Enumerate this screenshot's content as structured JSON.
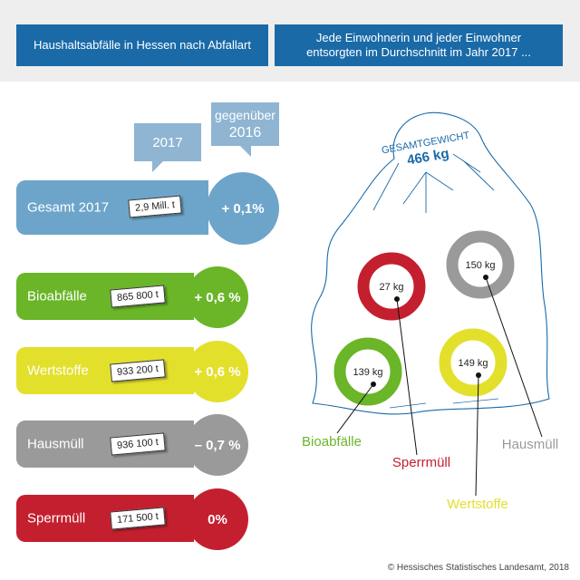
{
  "header": {
    "left": "Haushaltsabfälle in Hessen nach Abfallart",
    "right_line1": "Jede Einwohnerin und jeder Einwohner",
    "right_line2": "entsorgten im Durchschnitt im Jahr 2017 ..."
  },
  "bubbles": {
    "year": "2017",
    "vs_line1": "gegenüber",
    "vs_line2": "2016"
  },
  "rows": [
    {
      "label": "Gesamt 2017",
      "amount": "2,9 Mill. t",
      "change": "+ 0,1%",
      "color": "#6da5ca"
    },
    {
      "label": "Bioabfälle",
      "amount": "865 800 t",
      "change": "+ 0,6 %",
      "color": "#6ab528"
    },
    {
      "label": "Wertstoffe",
      "amount": "933 200 t",
      "change": "+ 0,6 %",
      "color": "#e3e02c"
    },
    {
      "label": "Hausmüll",
      "amount": "936 100 t",
      "change": "– 0,7 %",
      "color": "#9a9a9a"
    },
    {
      "label": "Sperrmüll",
      "amount": "171 500 t",
      "change": "0%",
      "color": "#c41f2f"
    }
  ],
  "bag": {
    "title": "GESAMTGEWICHT",
    "total": "466 kg"
  },
  "chart_data": {
    "type": "donut-per-capita",
    "unit": "kg",
    "items": [
      {
        "name": "Sperrmüll",
        "value": 27,
        "label": "27 kg",
        "color": "#c41f2f"
      },
      {
        "name": "Hausmüll",
        "value": 150,
        "label": "150 kg",
        "color": "#9a9a9a"
      },
      {
        "name": "Bioabfälle",
        "value": 139,
        "label": "139 kg",
        "color": "#6ab528"
      },
      {
        "name": "Wertstoffe",
        "value": 149,
        "label": "149 kg",
        "color": "#e3e02c"
      }
    ]
  },
  "footer": {
    "copyright": "© Hessisches Statistisches Landesamt, 2018"
  }
}
